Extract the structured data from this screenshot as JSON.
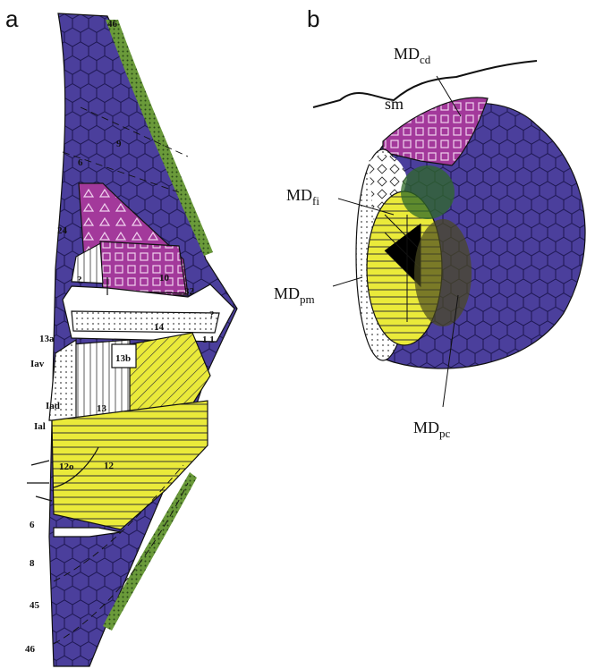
{
  "panel_a": {
    "letter": "a",
    "labels": [
      "46",
      "9",
      "6",
      "24",
      "32",
      "10",
      "?",
      "?",
      "14",
      "1 1",
      "13a",
      "Iav",
      "13b",
      "Iad",
      "13",
      "Ial",
      "12o",
      "12",
      "6",
      "8",
      "45",
      "46"
    ]
  },
  "panel_b": {
    "letter": "b",
    "sulcus": "sm",
    "labels": [
      {
        "main": "MD",
        "sub": "cd"
      },
      {
        "main": "MD",
        "sub": "fi"
      },
      {
        "main": "MD",
        "sub": "pm"
      },
      {
        "main": "MD",
        "sub": "pc"
      }
    ]
  }
}
